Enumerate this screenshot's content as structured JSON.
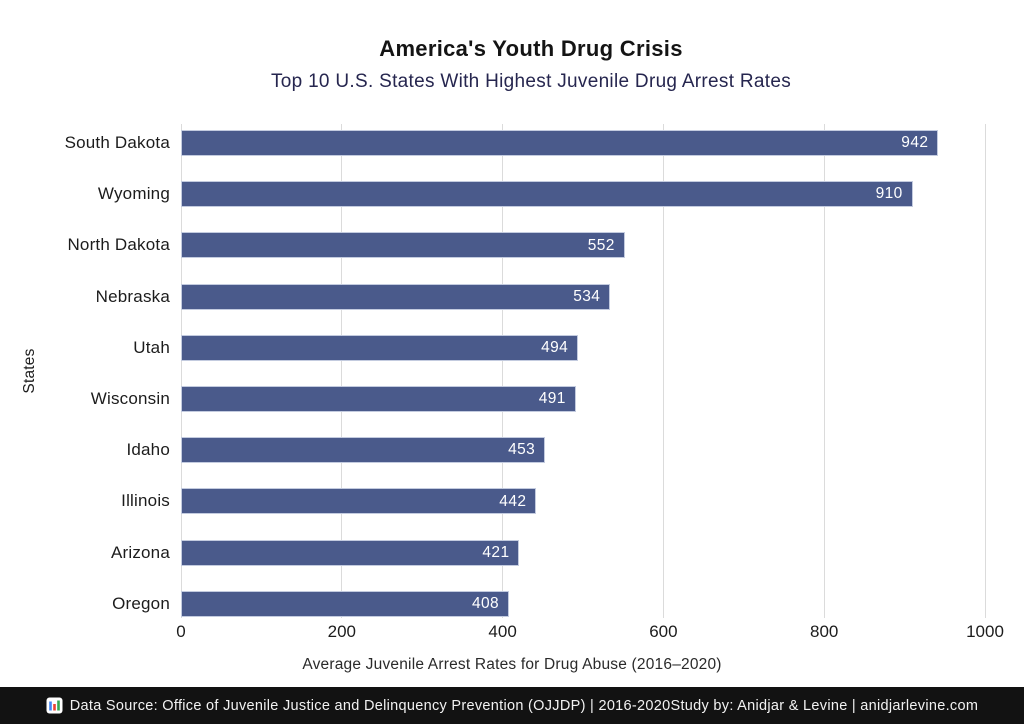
{
  "header": {
    "title": "America's Youth Drug Crisis",
    "subtitle": "Top 10 U.S. States With Highest Juvenile Drug Arrest Rates"
  },
  "chart_data": {
    "type": "bar",
    "orientation": "horizontal",
    "title": "America's Youth Drug Crisis",
    "subtitle": "Top 10 U.S. States With Highest Juvenile Drug Arrest Rates",
    "categories": [
      "South Dakota",
      "Wyoming",
      "North Dakota",
      "Nebraska",
      "Utah",
      "Wisconsin",
      "Idaho",
      "Illinois",
      "Arizona",
      "Oregon"
    ],
    "values": [
      942,
      910,
      552,
      534,
      494,
      491,
      453,
      442,
      421,
      408
    ],
    "xlabel": "Average Juvenile Arrest Rates for Drug Abuse (2016–2020)",
    "ylabel": "States",
    "xlim": [
      0,
      1000
    ],
    "xticks": [
      0,
      200,
      400,
      600,
      800,
      1000
    ],
    "grid": "vertical-gridlines",
    "legend": "none",
    "bar_color": "#4a5a8b",
    "bar_edge_color": "#c3cbdf",
    "value_label_color": "#ffffff"
  },
  "footer": {
    "icon": "bar-chart-emoji",
    "text": "Data Source: Office of Juvenile Justice and Delinquency Prevention (OJJDP) | 2016-2020Study by: Anidjar & Levine | anidjarlevine.com",
    "background_color": "#121212"
  }
}
